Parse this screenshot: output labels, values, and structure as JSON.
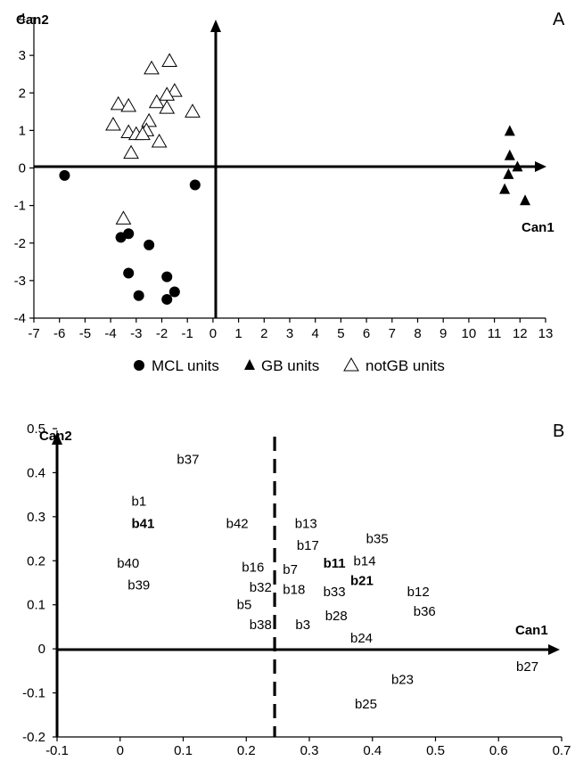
{
  "panel_a_label": "A",
  "panel_b_label": "B",
  "chart_data": [
    {
      "type": "scatter",
      "panel": "A",
      "xlabel": "Can1",
      "ylabel": "Can2",
      "xlim": [
        -7,
        13
      ],
      "ylim": [
        -4,
        4
      ],
      "xticks": [
        "-7",
        "-6",
        "-5",
        "-4",
        "-3",
        "-2",
        "-1",
        "0",
        "1",
        "2",
        "3",
        "4",
        "5",
        "6",
        "7",
        "8",
        "9",
        "10",
        "11",
        "12",
        "13"
      ],
      "yticks": [
        "4",
        "3",
        "2",
        "1",
        "0",
        "-1",
        "-2",
        "-3",
        "-4"
      ],
      "legend": {
        "placement": "bottom",
        "entries": [
          "MCL units",
          "GB units",
          "notGB units"
        ]
      },
      "series": [
        {
          "name": "MCL units",
          "marker": "circle",
          "points": [
            [
              -5.8,
              -0.2
            ],
            [
              -0.7,
              -0.45
            ],
            [
              -3.6,
              -1.85
            ],
            [
              -3.3,
              -1.75
            ],
            [
              -2.5,
              -2.05
            ],
            [
              -3.3,
              -2.8
            ],
            [
              -1.8,
              -2.9
            ],
            [
              -2.9,
              -3.4
            ],
            [
              -1.5,
              -3.3
            ],
            [
              -1.8,
              -3.5
            ]
          ]
        },
        {
          "name": "GB units",
          "marker": "filled-triangle",
          "points": [
            [
              11.6,
              1.0
            ],
            [
              11.6,
              0.35
            ],
            [
              11.9,
              0.05
            ],
            [
              11.55,
              -0.15
            ],
            [
              11.4,
              -0.55
            ],
            [
              12.2,
              -0.85
            ]
          ]
        },
        {
          "name": "notGB units",
          "marker": "open-triangle",
          "points": [
            [
              -2.4,
              2.65
            ],
            [
              -1.7,
              2.85
            ],
            [
              -1.5,
              2.05
            ],
            [
              -1.8,
              1.95
            ],
            [
              -2.2,
              1.75
            ],
            [
              -1.8,
              1.6
            ],
            [
              -0.8,
              1.5
            ],
            [
              -3.7,
              1.7
            ],
            [
              -3.3,
              1.65
            ],
            [
              -3.9,
              1.15
            ],
            [
              -2.5,
              1.25
            ],
            [
              -2.6,
              1.0
            ],
            [
              -3.3,
              0.95
            ],
            [
              -3.0,
              0.9
            ],
            [
              -2.75,
              0.9
            ],
            [
              -2.1,
              0.7
            ],
            [
              -3.2,
              0.4
            ],
            [
              -3.5,
              -1.35
            ]
          ]
        }
      ]
    },
    {
      "type": "scatter",
      "panel": "B",
      "xlabel": "Can1",
      "ylabel": "Can2",
      "xlim": [
        -0.1,
        0.7
      ],
      "ylim": [
        -0.2,
        0.5
      ],
      "xticks": [
        "-0.1",
        "0",
        "0.1",
        "0.2",
        "0.3",
        "0.4",
        "0.5",
        "0.6",
        "0.7"
      ],
      "yticks": [
        "0.5",
        "0.4",
        "0.3",
        "0.2",
        "0.1",
        "0",
        "-0.1",
        "-0.2"
      ],
      "cutoff_line": {
        "x": 0.245,
        "style": "dashed"
      },
      "labels": [
        {
          "text": "b37",
          "x": 0.09,
          "y": 0.43
        },
        {
          "text": "b1",
          "x": 0.018,
          "y": 0.335
        },
        {
          "text": "b41",
          "x": 0.018,
          "y": 0.285,
          "bold": true
        },
        {
          "text": "b42",
          "x": 0.168,
          "y": 0.285
        },
        {
          "text": "b13",
          "x": 0.277,
          "y": 0.285
        },
        {
          "text": "b35",
          "x": 0.39,
          "y": 0.25
        },
        {
          "text": "b17",
          "x": 0.28,
          "y": 0.235
        },
        {
          "text": "b40",
          "x": -0.005,
          "y": 0.195
        },
        {
          "text": "b11",
          "x": 0.322,
          "y": 0.195,
          "bold": true
        },
        {
          "text": "b14",
          "x": 0.37,
          "y": 0.2
        },
        {
          "text": "b16",
          "x": 0.193,
          "y": 0.185
        },
        {
          "text": "b7",
          "x": 0.258,
          "y": 0.18
        },
        {
          "text": "b21",
          "x": 0.365,
          "y": 0.155,
          "bold": true
        },
        {
          "text": "b39",
          "x": 0.012,
          "y": 0.145
        },
        {
          "text": "b32",
          "x": 0.205,
          "y": 0.14
        },
        {
          "text": "b18",
          "x": 0.258,
          "y": 0.135
        },
        {
          "text": "b33",
          "x": 0.322,
          "y": 0.13
        },
        {
          "text": "b12",
          "x": 0.455,
          "y": 0.13
        },
        {
          "text": "b5",
          "x": 0.185,
          "y": 0.1
        },
        {
          "text": "b36",
          "x": 0.465,
          "y": 0.085
        },
        {
          "text": "b28",
          "x": 0.325,
          "y": 0.075
        },
        {
          "text": "b38",
          "x": 0.205,
          "y": 0.055
        },
        {
          "text": "b3",
          "x": 0.278,
          "y": 0.055
        },
        {
          "text": "b24",
          "x": 0.365,
          "y": 0.025
        },
        {
          "text": "b27",
          "x": 0.628,
          "y": -0.04
        },
        {
          "text": "b23",
          "x": 0.43,
          "y": -0.07
        },
        {
          "text": "b25",
          "x": 0.372,
          "y": -0.125
        }
      ]
    }
  ]
}
